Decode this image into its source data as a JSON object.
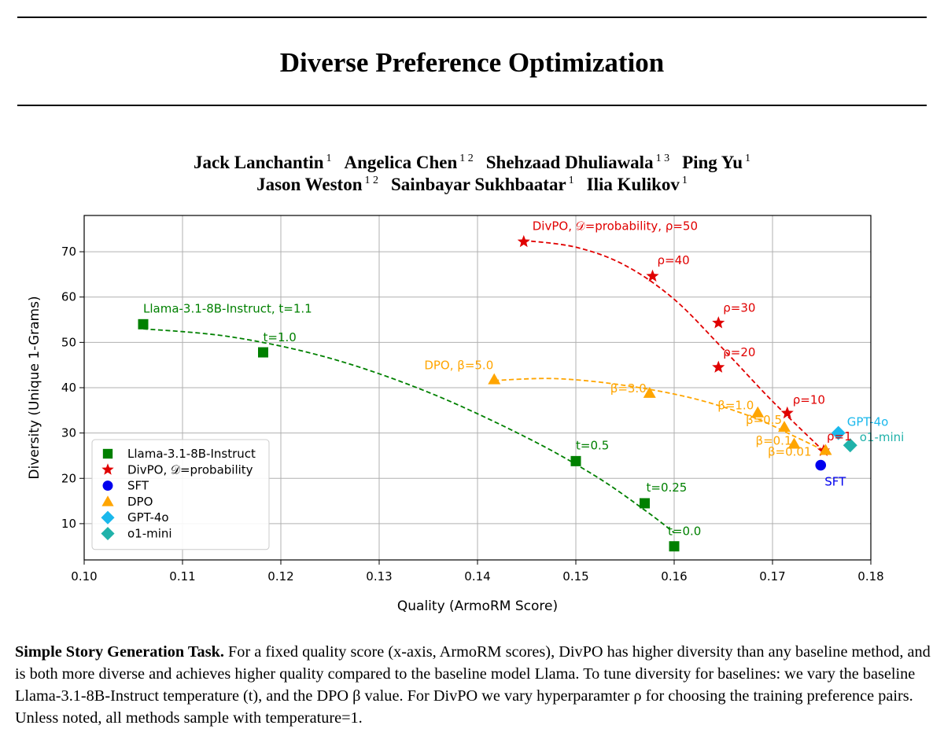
{
  "paper": {
    "title": "Diverse Preference Optimization",
    "authors_line1": [
      {
        "name": "Jack Lanchantin",
        "aff": "1"
      },
      {
        "name": "Angelica Chen",
        "aff": "1 2"
      },
      {
        "name": "Shehzaad Dhuliawala",
        "aff": "1 3"
      },
      {
        "name": "Ping Yu",
        "aff": "1"
      }
    ],
    "authors_line2": [
      {
        "name": "Jason Weston",
        "aff": "1 2"
      },
      {
        "name": "Sainbayar Sukhbaatar",
        "aff": "1"
      },
      {
        "name": "Ilia Kulikov",
        "aff": "1"
      }
    ],
    "caption_title": "Simple Story Generation Task.",
    "caption_body": " For a fixed quality score (x-axis, ArmoRM scores), DivPO has higher diversity than any baseline method, and is both more diverse and achieves higher quality compared to the baseline model Llama. To tune diversity for baselines: we vary the baseline Llama-3.1-8B-Instruct temperature (t), and the DPO β value. For DivPO we vary hyperparamter ρ for choosing the training preference pairs. Unless noted, all methods sample with temperature=1."
  },
  "chart_data": {
    "type": "scatter",
    "xlabel": "Quality (ArmoRM Score)",
    "ylabel": "Diversity (Unique 1-Grams)",
    "xlim": [
      0.1,
      0.18
    ],
    "ylim": [
      2,
      78
    ],
    "xticks": [
      "0.10",
      "0.11",
      "0.12",
      "0.13",
      "0.14",
      "0.15",
      "0.16",
      "0.17",
      "0.18"
    ],
    "xtick_values": [
      0.1,
      0.11,
      0.12,
      0.13,
      0.14,
      0.15,
      0.16,
      0.17,
      0.18
    ],
    "yticks": [
      "10",
      "20",
      "30",
      "40",
      "50",
      "60",
      "70"
    ],
    "ytick_values": [
      10,
      20,
      30,
      40,
      50,
      60,
      70
    ],
    "grid": true,
    "legend_position": "lower-left",
    "series": [
      {
        "name": "Llama-3.1-8B-Instruct",
        "marker": "square",
        "color": "#008000",
        "points": [
          {
            "x": 0.106,
            "y": 54.0,
            "label": "Llama-3.1-8B-Instruct, t=1.1"
          },
          {
            "x": 0.1182,
            "y": 47.8,
            "label": "t=1.0"
          },
          {
            "x": 0.15,
            "y": 23.8,
            "label": "t=0.5"
          },
          {
            "x": 0.157,
            "y": 14.5,
            "label": "t=0.25"
          },
          {
            "x": 0.16,
            "y": 5.0,
            "label": "t=0.0"
          }
        ],
        "fit_curve": [
          [
            0.106,
            53.0
          ],
          [
            0.115,
            51.2
          ],
          [
            0.125,
            46.5
          ],
          [
            0.135,
            39.0
          ],
          [
            0.145,
            29.0
          ],
          [
            0.152,
            20.5
          ],
          [
            0.157,
            13.0
          ],
          [
            0.16,
            8.0
          ]
        ]
      },
      {
        "name": "DivPO, 𝒟=probability",
        "marker": "star",
        "color": "#e00000",
        "points": [
          {
            "x": 0.1447,
            "y": 72.2,
            "label": "DivPO, 𝒟=probability, ρ=50"
          },
          {
            "x": 0.1578,
            "y": 64.6,
            "label": "ρ=40"
          },
          {
            "x": 0.1645,
            "y": 54.3,
            "label": "ρ=30"
          },
          {
            "x": 0.1645,
            "y": 44.5,
            "label": "ρ=20"
          },
          {
            "x": 0.1715,
            "y": 34.4,
            "label": "ρ=10"
          },
          {
            "x": 0.1752,
            "y": 26.1,
            "label": "ρ=1"
          }
        ],
        "fit_curve": [
          [
            0.1447,
            72.5
          ],
          [
            0.15,
            71.0
          ],
          [
            0.155,
            67.0
          ],
          [
            0.16,
            59.5
          ],
          [
            0.165,
            48.5
          ],
          [
            0.17,
            37.0
          ],
          [
            0.1752,
            26.0
          ]
        ]
      },
      {
        "name": "SFT",
        "marker": "circle",
        "color": "#0000ee",
        "points": [
          {
            "x": 0.1749,
            "y": 22.9,
            "label": "SFT"
          }
        ]
      },
      {
        "name": "DPO",
        "marker": "triangle",
        "color": "#ffa500",
        "points": [
          {
            "x": 0.1417,
            "y": 41.8,
            "label": "DPO, β=5.0"
          },
          {
            "x": 0.1575,
            "y": 38.8,
            "label": "β=3.0"
          },
          {
            "x": 0.1685,
            "y": 34.5,
            "label": "β=1.0"
          },
          {
            "x": 0.1712,
            "y": 31.3,
            "label": "β=0.5"
          },
          {
            "x": 0.1722,
            "y": 27.6,
            "label": "β=0.1"
          },
          {
            "x": 0.1754,
            "y": 26.2,
            "label": "β=0.01"
          }
        ],
        "fit_curve": [
          [
            0.1417,
            41.6
          ],
          [
            0.148,
            42.0
          ],
          [
            0.155,
            40.5
          ],
          [
            0.162,
            37.6
          ],
          [
            0.168,
            33.5
          ],
          [
            0.172,
            29.5
          ],
          [
            0.1754,
            26.0
          ]
        ]
      },
      {
        "name": "GPT-4o",
        "marker": "diamond",
        "color": "#1ab8ec",
        "points": [
          {
            "x": 0.1767,
            "y": 30.0,
            "label": "GPT-4o"
          }
        ]
      },
      {
        "name": "o1-mini",
        "marker": "diamond",
        "color": "#20b2aa",
        "points": [
          {
            "x": 0.1779,
            "y": 27.3,
            "label": "o1-mini"
          }
        ]
      }
    ]
  }
}
